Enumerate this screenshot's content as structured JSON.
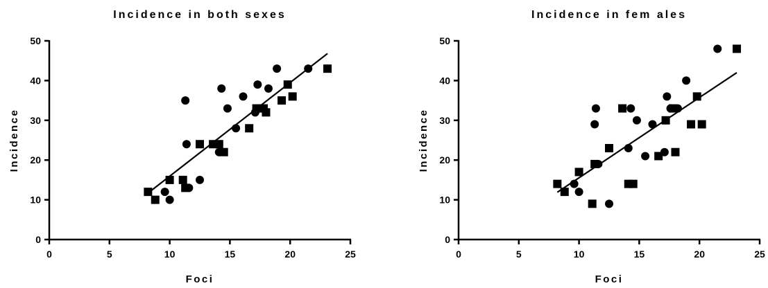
{
  "chart_data": [
    {
      "type": "scatter",
      "title": "Incidence in both sexes",
      "xlabel": "Foci",
      "ylabel": "Incidence",
      "xlim": [
        0,
        25
      ],
      "ylim": [
        0,
        50
      ],
      "xticks": [
        "0",
        "5",
        "10",
        "15",
        "20",
        "25"
      ],
      "yticks": [
        "0",
        "10",
        "20",
        "30",
        "40",
        "50"
      ],
      "grid": false,
      "legend": "none",
      "series": [
        {
          "marker": "circle",
          "x": [
            9.6,
            10.0,
            11.3,
            11.4,
            11.6,
            12.5,
            14.1,
            14.3,
            14.8,
            15.5,
            16.1,
            17.1,
            17.3,
            17.6,
            18.2,
            18.9,
            21.5
          ],
          "y": [
            12,
            10,
            35,
            24,
            13,
            15,
            22,
            38,
            33,
            28,
            36,
            32,
            39,
            33,
            38,
            43,
            43
          ]
        },
        {
          "marker": "square",
          "x": [
            8.2,
            8.8,
            10.0,
            11.1,
            11.3,
            12.5,
            13.6,
            14.1,
            14.5,
            16.6,
            17.2,
            17.8,
            18.0,
            19.3,
            19.8,
            20.2,
            23.1
          ],
          "y": [
            12,
            10,
            15,
            15,
            13,
            24,
            24,
            24,
            22,
            28,
            33,
            33,
            32,
            35,
            39,
            36,
            43
          ]
        }
      ],
      "fit_line": {
        "x": [
          8.2,
          23.1
        ],
        "y": [
          11.7,
          46.8
        ]
      }
    },
    {
      "type": "scatter",
      "title": "Incidence in fem ales",
      "xlabel": "Foci",
      "ylabel": "Incidence",
      "xlim": [
        0,
        25
      ],
      "ylim": [
        0,
        50
      ],
      "xticks": [
        "0",
        "5",
        "10",
        "15",
        "20",
        "25"
      ],
      "yticks": [
        "0",
        "10",
        "20",
        "30",
        "40",
        "50"
      ],
      "grid": false,
      "legend": "none",
      "series": [
        {
          "marker": "circle",
          "x": [
            9.6,
            10.0,
            11.3,
            11.4,
            11.6,
            12.5,
            14.1,
            14.3,
            14.8,
            15.5,
            16.1,
            17.1,
            17.3,
            17.6,
            18.2,
            18.9,
            21.5
          ],
          "y": [
            14,
            12,
            29,
            33,
            19,
            9,
            23,
            33,
            30,
            21,
            29,
            22,
            36,
            33,
            33,
            40,
            48
          ]
        },
        {
          "marker": "square",
          "x": [
            8.2,
            8.8,
            10.0,
            11.1,
            11.3,
            12.5,
            13.6,
            14.1,
            14.5,
            16.6,
            17.2,
            17.8,
            18.0,
            19.3,
            19.8,
            20.2,
            23.1
          ],
          "y": [
            14,
            12,
            17,
            9,
            19,
            23,
            33,
            14,
            14,
            21,
            30,
            33,
            22,
            29,
            36,
            29,
            48
          ]
        }
      ],
      "fit_line": {
        "x": [
          8.2,
          23.1
        ],
        "y": [
          11.9,
          42.0
        ]
      }
    }
  ]
}
